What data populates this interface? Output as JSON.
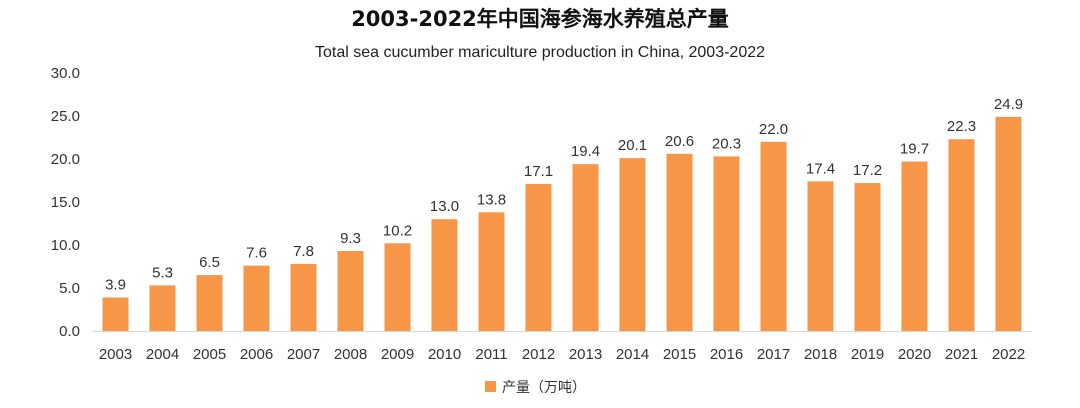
{
  "chart_data": {
    "type": "bar",
    "title": "2003-2022年中国海参海水养殖总产量",
    "subtitle": "Total sea cucumber mariculture production in China, 2003-2022",
    "xlabel": "",
    "ylabel": "",
    "ylim": [
      0,
      30
    ],
    "yticks": [
      "0.0",
      "5.0",
      "10.0",
      "15.0",
      "20.0",
      "25.0",
      "30.0"
    ],
    "ytick_values": [
      0,
      5,
      10,
      15,
      20,
      25,
      30
    ],
    "grid": false,
    "legend_position": "bottom-center",
    "categories": [
      "2003",
      "2004",
      "2005",
      "2006",
      "2007",
      "2008",
      "2009",
      "2010",
      "2011",
      "2012",
      "2013",
      "2014",
      "2015",
      "2016",
      "2017",
      "2018",
      "2019",
      "2020",
      "2021",
      "2022"
    ],
    "series": [
      {
        "name": "产量（万吨）",
        "color": "#f79646",
        "values": [
          3.9,
          5.3,
          6.5,
          7.6,
          7.8,
          9.3,
          10.2,
          13.0,
          13.8,
          17.1,
          19.4,
          20.1,
          20.6,
          20.3,
          22.0,
          17.4,
          17.2,
          19.7,
          22.3,
          24.9
        ],
        "labels": [
          "3.9",
          "5.3",
          "6.5",
          "7.6",
          "7.8",
          "9.3",
          "10.2",
          "13.0",
          "13.8",
          "17.1",
          "19.4",
          "20.1",
          "20.6",
          "20.3",
          "22.0",
          "17.4",
          "17.2",
          "19.7",
          "22.3",
          "24.9"
        ]
      }
    ]
  }
}
